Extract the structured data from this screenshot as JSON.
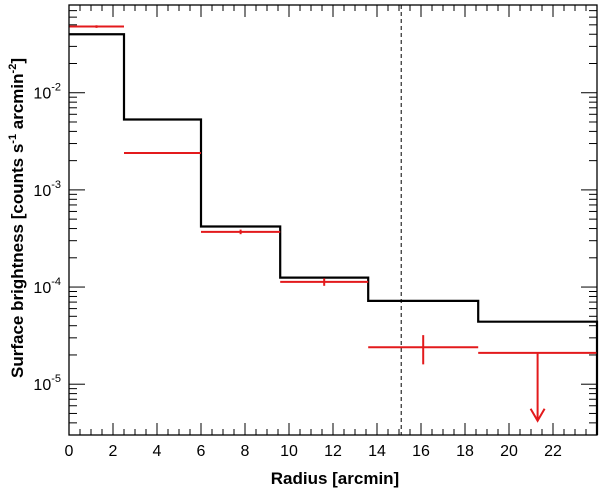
{
  "chart_data": {
    "type": "step",
    "title": "",
    "xlabel": "Radius [arcmin]",
    "ylabel": {
      "main": "Surface brightness [counts s",
      "exp1": "-1",
      "mid": " arcmin",
      "exp2": "-2",
      "end": "]"
    },
    "xlim": [
      0,
      24
    ],
    "ylim": [
      3e-06,
      0.08
    ],
    "yscale": "log",
    "grid": false,
    "legend": "none",
    "xticks": [
      "0",
      "2",
      "4",
      "6",
      "8",
      "10",
      "12",
      "14",
      "16",
      "18",
      "20",
      "22"
    ],
    "yticks": [
      {
        "base": "10",
        "exp": "-2",
        "value": 0.01
      },
      {
        "base": "10",
        "exp": "-3",
        "value": 0.001
      },
      {
        "base": "10",
        "exp": "-4",
        "value": 0.0001
      },
      {
        "base": "10",
        "exp": "-5",
        "value": 1e-05
      }
    ],
    "model_step": {
      "color": "#000000",
      "edges": [
        0,
        2.5,
        6.0,
        9.6,
        13.6,
        18.6,
        24
      ],
      "values": [
        0.04,
        0.0053,
        0.00042,
        0.000125,
        7.2e-05,
        4.4e-05
      ]
    },
    "data_points": {
      "color": "#e31a1c",
      "points": [
        {
          "x": 1.25,
          "xerr": 1.25,
          "y": 0.048,
          "ylo": 0.0465,
          "yhi": 0.0495
        },
        {
          "x": 4.25,
          "xerr": 1.75,
          "y": 0.0024,
          "ylo": 0.00235,
          "yhi": 0.00245
        },
        {
          "x": 7.8,
          "xerr": 1.8,
          "y": 0.00037,
          "ylo": 0.00035,
          "yhi": 0.00039
        },
        {
          "x": 11.6,
          "xerr": 2.0,
          "y": 0.000113,
          "ylo": 0.000103,
          "yhi": 0.000123
        },
        {
          "x": 16.1,
          "xerr": 2.5,
          "y": 2.4e-05,
          "ylo": 1.6e-05,
          "yhi": 3.2e-05
        }
      ],
      "upper_limit": {
        "x": 21.3,
        "xerr": 2.7,
        "y": 2.1e-05,
        "arrow_to": 4.2e-06
      }
    },
    "vertical_line": {
      "x": 15.1,
      "style": "dashed",
      "color": "#000000"
    }
  }
}
